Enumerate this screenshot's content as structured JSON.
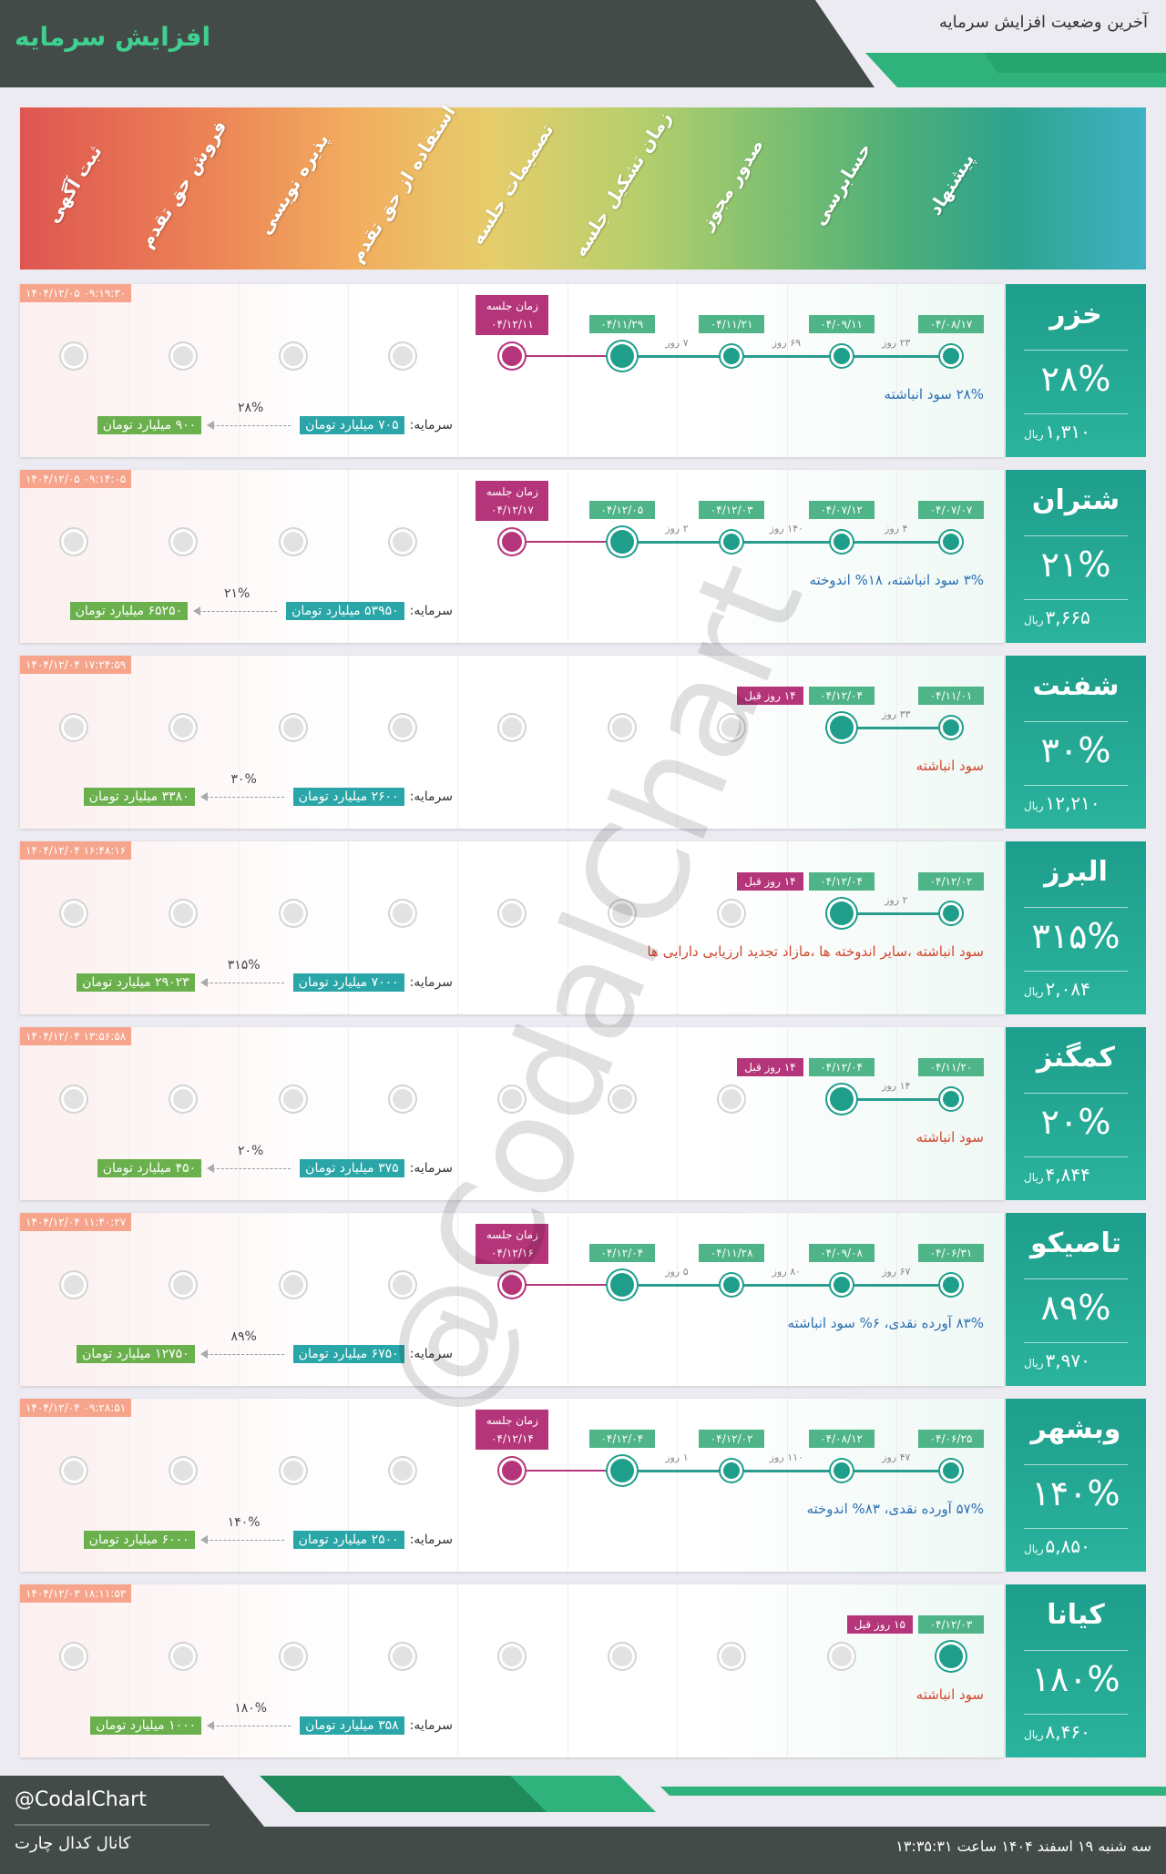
{
  "header": {
    "title": "افزایش سرمایه",
    "subtitle": "آخرین وضعیت افزایش سرمایه"
  },
  "stages": [
    "پیشنهاد",
    "حسابرسی",
    "صدور مجوز",
    "زمان تشکیل جلسه",
    "تصمیمات جلسه",
    "استفاده از حق تقدم",
    "پذیره نویسی",
    "فروش حق تقدم",
    "ثبت آگهی"
  ],
  "labels": {
    "currency": "ریال",
    "capital": "سرمایه:",
    "meeting": "زمان جلسه"
  },
  "companies": [
    {
      "name": "خزر",
      "percent": "۲۸%",
      "price": "۱,۳۱۰",
      "timestamp": "۱۴۰۴/۱۲/۰۵ ۰۹:۱۹:۳۰",
      "dates": [
        "۰۴/۰۸/۱۷",
        "۰۴/۰۹/۱۱",
        "۰۴/۱۱/۲۱",
        "۰۴/۱۱/۲۹"
      ],
      "gaps": [
        "۲۳ روز",
        "۶۹ روز",
        "۷ روز"
      ],
      "meeting_date": "۰۴/۱۲/۱۱",
      "note": "۲۸% سود انباشته",
      "note_color": "#2c6fb4",
      "capital_from": "۷۰۵ میلیارد تومان",
      "capital_to": "۹۰۰ میلیارد تومان",
      "increase": "۲۸%"
    },
    {
      "name": "شتران",
      "percent": "۲۱%",
      "price": "۳,۶۶۵",
      "timestamp": "۱۴۰۴/۱۲/۰۵ ۰۹:۱۴:۰۵",
      "dates": [
        "۰۴/۰۷/۰۷",
        "۰۴/۰۷/۱۲",
        "۰۴/۱۲/۰۳",
        "۰۴/۱۲/۰۵"
      ],
      "gaps": [
        "۴ روز",
        "۱۴۰ روز",
        "۲ روز"
      ],
      "meeting_date": "۰۴/۱۲/۱۷",
      "note": "۳% سود انباشته، ۱۸% اندوخته",
      "note_color": "#2c6fb4",
      "capital_from": "۵۳۹۵۰ میلیارد تومان",
      "capital_to": "۶۵۲۵۰ میلیارد تومان",
      "increase": "۲۱%"
    },
    {
      "name": "شفنت",
      "percent": "۳۰%",
      "price": "۱۲,۲۱۰",
      "timestamp": "۱۴۰۴/۱۲/۰۴ ۱۷:۲۴:۵۹",
      "dates": [
        "۰۴/۱۱/۰۱",
        "۰۴/۱۲/۰۴"
      ],
      "gaps": [
        "۳۳ روز"
      ],
      "ago": "۱۴ روز قبل",
      "note": "سود انباشته",
      "note_color": "#d2462c",
      "capital_from": "۲۶۰۰ میلیارد تومان",
      "capital_to": "۳۳۸۰ میلیارد تومان",
      "increase": "۳۰%"
    },
    {
      "name": "البرز",
      "percent": "۳۱۵%",
      "price": "۲,۰۸۴",
      "timestamp": "۱۴۰۴/۱۲/۰۴ ۱۶:۴۸:۱۶",
      "dates": [
        "۰۴/۱۲/۰۲",
        "۰۴/۱۲/۰۴"
      ],
      "gaps": [
        "۲ روز"
      ],
      "ago": "۱۴ روز قبل",
      "note": "سود انباشته ،سایر اندوخته ها ،مازاد تجدید ارزیابی دارایی ها",
      "note_color": "#d2462c",
      "capital_from": "۷۰۰۰ میلیارد تومان",
      "capital_to": "۲۹۰۲۳ میلیارد تومان",
      "increase": "۳۱۵%"
    },
    {
      "name": "کمگنز",
      "percent": "۲۰%",
      "price": "۴,۸۴۴",
      "timestamp": "۱۴۰۴/۱۲/۰۴ ۱۳:۵۶:۵۸",
      "dates": [
        "۰۴/۱۱/۲۰",
        "۰۴/۱۲/۰۴"
      ],
      "gaps": [
        "۱۴ روز"
      ],
      "ago": "۱۴ روز قبل",
      "note": "سود انباشته",
      "note_color": "#d2462c",
      "capital_from": "۳۷۵ میلیارد تومان",
      "capital_to": "۴۵۰ میلیارد تومان",
      "increase": "۲۰%"
    },
    {
      "name": "تاصیکو",
      "percent": "۸۹%",
      "price": "۳,۹۷۰",
      "timestamp": "۱۴۰۴/۱۲/۰۴ ۱۱:۴۰:۲۷",
      "dates": [
        "۰۴/۰۶/۳۱",
        "۰۴/۰۹/۰۸",
        "۰۴/۱۱/۲۸",
        "۰۴/۱۲/۰۴"
      ],
      "gaps": [
        "۶۷ روز",
        "۸۰ روز",
        "۵ روز"
      ],
      "meeting_date": "۰۴/۱۲/۱۶",
      "note": "۸۳% آورده نقدی، ۶% سود انباشته",
      "note_color": "#2c6fb4",
      "capital_from": "۶۷۵۰ میلیارد تومان",
      "capital_to": "۱۲۷۵۰ میلیارد تومان",
      "increase": "۸۹%"
    },
    {
      "name": "وبشهر",
      "percent": "۱۴۰%",
      "price": "۵,۸۵۰",
      "timestamp": "۱۴۰۴/۱۲/۰۴ ۰۹:۲۸:۵۱",
      "dates": [
        "۰۴/۰۶/۲۵",
        "۰۴/۰۸/۱۲",
        "۰۴/۱۲/۰۲",
        "۰۴/۱۲/۰۴"
      ],
      "gaps": [
        "۴۷ روز",
        "۱۱۰ روز",
        "۱ روز"
      ],
      "meeting_date": "۰۴/۱۲/۱۴",
      "note": "۵۷% آورده نقدی، ۸۳% اندوخته",
      "note_color": "#2c6fb4",
      "capital_from": "۲۵۰۰ میلیارد تومان",
      "capital_to": "۶۰۰۰ میلیارد تومان",
      "increase": "۱۴۰%"
    },
    {
      "name": "کیانا",
      "percent": "۱۸۰%",
      "price": "۸,۴۶۰",
      "timestamp": "۱۴۰۴/۱۲/۰۳ ۱۸:۱۱:۵۳",
      "dates": [
        "۰۴/۱۲/۰۳"
      ],
      "gaps": [],
      "ago": "۱۵ روز قبل",
      "note": "سود انباشته",
      "note_color": "#d2462c",
      "capital_from": "۳۵۸ میلیارد تومان",
      "capital_to": "۱۰۰۰ میلیارد تومان",
      "increase": "۱۸۰%"
    }
  ],
  "watermark": "@CodalChart",
  "footer": {
    "handle": "@CodalChart",
    "channel": "کانال کدال چارت",
    "datetime": "سه شنبه ۱۹ اسفند ۱۴۰۴ ساعت ۱۳:۳۵:۳۱"
  }
}
